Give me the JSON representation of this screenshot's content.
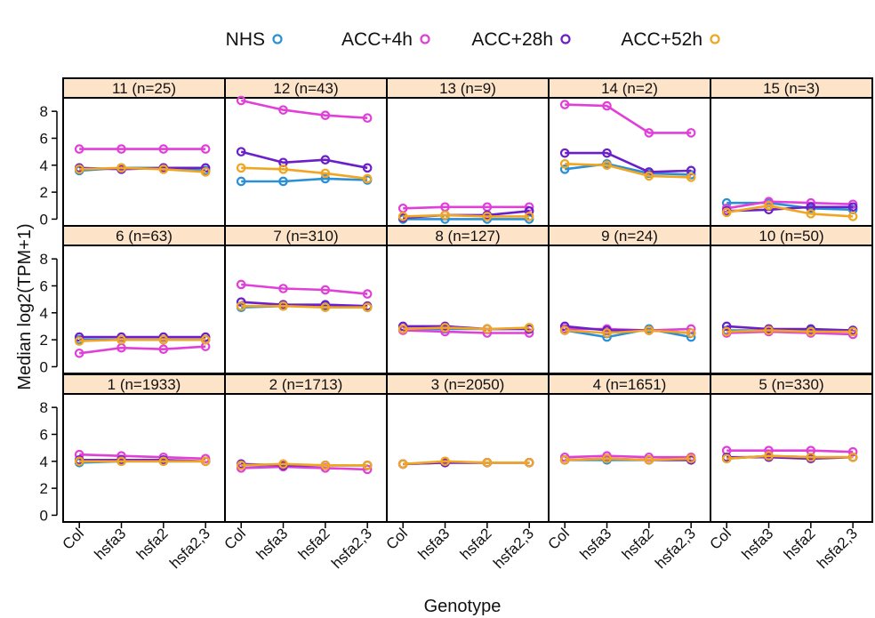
{
  "chart_data": {
    "type": "line",
    "title": "",
    "xlabel": "Genotype",
    "ylabel": "Median log2(TPM+1)",
    "ylim": [
      -0.5,
      9
    ],
    "yticks": [
      0,
      2,
      4,
      6,
      8
    ],
    "categories": [
      "Col",
      "hsfa3",
      "hsfa2",
      "hsfa2,3"
    ],
    "legend_position": "top",
    "series_meta": [
      {
        "name": "NHS",
        "color": "#2b8fd6"
      },
      {
        "name": "ACC+4h",
        "color": "#e040d8"
      },
      {
        "name": "ACC+28h",
        "color": "#6a1fc9"
      },
      {
        "name": "ACC+52h",
        "color": "#f0a622"
      }
    ],
    "panels": [
      {
        "label": "11 (n=25)",
        "series": [
          {
            "name": "NHS",
            "values": [
              3.6,
              3.8,
              3.8,
              3.6
            ]
          },
          {
            "name": "ACC+4h",
            "values": [
              5.2,
              5.2,
              5.2,
              5.2
            ]
          },
          {
            "name": "ACC+28h",
            "values": [
              3.8,
              3.7,
              3.8,
              3.8
            ]
          },
          {
            "name": "ACC+52h",
            "values": [
              3.7,
              3.8,
              3.7,
              3.5
            ]
          }
        ]
      },
      {
        "label": "12 (n=43)",
        "series": [
          {
            "name": "NHS",
            "values": [
              2.8,
              2.8,
              3.0,
              2.9
            ]
          },
          {
            "name": "ACC+4h",
            "values": [
              8.8,
              8.1,
              7.7,
              7.5
            ]
          },
          {
            "name": "ACC+28h",
            "values": [
              5.0,
              4.2,
              4.4,
              3.8
            ]
          },
          {
            "name": "ACC+52h",
            "values": [
              3.8,
              3.7,
              3.4,
              3.0
            ]
          }
        ]
      },
      {
        "label": "13 (n=9)",
        "series": [
          {
            "name": "NHS",
            "values": [
              0.0,
              0.0,
              0.0,
              0.0
            ]
          },
          {
            "name": "ACC+4h",
            "values": [
              0.8,
              0.9,
              0.9,
              0.9
            ]
          },
          {
            "name": "ACC+28h",
            "values": [
              0.1,
              0.3,
              0.3,
              0.6
            ]
          },
          {
            "name": "ACC+52h",
            "values": [
              0.2,
              0.3,
              0.2,
              0.2
            ]
          }
        ]
      },
      {
        "label": "14 (n=2)",
        "series": [
          {
            "name": "NHS",
            "values": [
              3.7,
              4.1,
              3.4,
              3.3
            ]
          },
          {
            "name": "ACC+4h",
            "values": [
              8.5,
              8.4,
              6.4,
              6.4
            ]
          },
          {
            "name": "ACC+28h",
            "values": [
              4.9,
              4.9,
              3.5,
              3.6
            ]
          },
          {
            "name": "ACC+52h",
            "values": [
              4.1,
              4.0,
              3.2,
              3.1
            ]
          }
        ]
      },
      {
        "label": "15 (n=3)",
        "series": [
          {
            "name": "NHS",
            "values": [
              1.2,
              1.2,
              0.8,
              0.7
            ]
          },
          {
            "name": "ACC+4h",
            "values": [
              0.8,
              1.3,
              1.2,
              1.1
            ]
          },
          {
            "name": "ACC+28h",
            "values": [
              0.6,
              0.7,
              0.9,
              0.9
            ]
          },
          {
            "name": "ACC+52h",
            "values": [
              0.5,
              1.0,
              0.4,
              0.2
            ]
          }
        ]
      },
      {
        "label": "6 (n=63)",
        "series": [
          {
            "name": "NHS",
            "values": [
              2.0,
              2.0,
              2.0,
              2.0
            ]
          },
          {
            "name": "ACC+4h",
            "values": [
              1.0,
              1.4,
              1.3,
              1.5
            ]
          },
          {
            "name": "ACC+28h",
            "values": [
              2.2,
              2.2,
              2.2,
              2.2
            ]
          },
          {
            "name": "ACC+52h",
            "values": [
              1.9,
              2.0,
              2.0,
              2.0
            ]
          }
        ]
      },
      {
        "label": "7 (n=310)",
        "series": [
          {
            "name": "NHS",
            "values": [
              4.4,
              4.5,
              4.5,
              4.4
            ]
          },
          {
            "name": "ACC+4h",
            "values": [
              6.1,
              5.8,
              5.7,
              5.4
            ]
          },
          {
            "name": "ACC+28h",
            "values": [
              4.8,
              4.6,
              4.6,
              4.5
            ]
          },
          {
            "name": "ACC+52h",
            "values": [
              4.5,
              4.5,
              4.4,
              4.4
            ]
          }
        ]
      },
      {
        "label": "8 (n=127)",
        "series": [
          {
            "name": "NHS",
            "values": [
              2.8,
              2.8,
              2.8,
              2.8
            ]
          },
          {
            "name": "ACC+4h",
            "values": [
              2.7,
              2.6,
              2.5,
              2.5
            ]
          },
          {
            "name": "ACC+28h",
            "values": [
              3.0,
              3.0,
              2.8,
              2.8
            ]
          },
          {
            "name": "ACC+52h",
            "values": [
              2.8,
              2.9,
              2.8,
              2.9
            ]
          }
        ]
      },
      {
        "label": "9 (n=24)",
        "series": [
          {
            "name": "NHS",
            "values": [
              2.7,
              2.2,
              2.8,
              2.2
            ]
          },
          {
            "name": "ACC+4h",
            "values": [
              2.8,
              2.8,
              2.7,
              2.8
            ]
          },
          {
            "name": "ACC+28h",
            "values": [
              3.0,
              2.7,
              2.7,
              2.5
            ]
          },
          {
            "name": "ACC+52h",
            "values": [
              2.7,
              2.5,
              2.7,
              2.5
            ]
          }
        ]
      },
      {
        "label": "10 (n=50)",
        "series": [
          {
            "name": "NHS",
            "values": [
              2.7,
              2.7,
              2.7,
              2.7
            ]
          },
          {
            "name": "ACC+4h",
            "values": [
              2.5,
              2.6,
              2.5,
              2.4
            ]
          },
          {
            "name": "ACC+28h",
            "values": [
              3.0,
              2.8,
              2.8,
              2.7
            ]
          },
          {
            "name": "ACC+52h",
            "values": [
              2.6,
              2.7,
              2.6,
              2.6
            ]
          }
        ]
      },
      {
        "label": "1 (n=1933)",
        "series": [
          {
            "name": "NHS",
            "values": [
              3.9,
              4.0,
              4.0,
              4.0
            ]
          },
          {
            "name": "ACC+4h",
            "values": [
              4.5,
              4.4,
              4.3,
              4.2
            ]
          },
          {
            "name": "ACC+28h",
            "values": [
              4.1,
              4.1,
              4.1,
              4.0
            ]
          },
          {
            "name": "ACC+52h",
            "values": [
              4.0,
              4.0,
              4.0,
              4.0
            ]
          }
        ]
      },
      {
        "label": "2 (n=1713)",
        "series": [
          {
            "name": "NHS",
            "values": [
              3.7,
              3.7,
              3.7,
              3.7
            ]
          },
          {
            "name": "ACC+4h",
            "values": [
              3.5,
              3.6,
              3.5,
              3.4
            ]
          },
          {
            "name": "ACC+28h",
            "values": [
              3.8,
              3.7,
              3.7,
              3.7
            ]
          },
          {
            "name": "ACC+52h",
            "values": [
              3.7,
              3.8,
              3.7,
              3.7
            ]
          }
        ]
      },
      {
        "label": "3 (n=2050)",
        "series": [
          {
            "name": "NHS",
            "values": [
              3.8,
              3.9,
              3.9,
              3.9
            ]
          },
          {
            "name": "ACC+4h",
            "values": [
              3.8,
              3.9,
              3.9,
              3.9
            ]
          },
          {
            "name": "ACC+28h",
            "values": [
              3.8,
              3.9,
              3.9,
              3.9
            ]
          },
          {
            "name": "ACC+52h",
            "values": [
              3.8,
              4.0,
              3.9,
              3.9
            ]
          }
        ]
      },
      {
        "label": "4 (n=1651)",
        "series": [
          {
            "name": "NHS",
            "values": [
              4.1,
              4.1,
              4.1,
              4.1
            ]
          },
          {
            "name": "ACC+4h",
            "values": [
              4.3,
              4.4,
              4.3,
              4.3
            ]
          },
          {
            "name": "ACC+28h",
            "values": [
              4.1,
              4.2,
              4.1,
              4.1
            ]
          },
          {
            "name": "ACC+52h",
            "values": [
              4.1,
              4.2,
              4.1,
              4.2
            ]
          }
        ]
      },
      {
        "label": "5 (n=330)",
        "series": [
          {
            "name": "NHS",
            "values": [
              4.2,
              4.4,
              4.3,
              4.3
            ]
          },
          {
            "name": "ACC+4h",
            "values": [
              4.8,
              4.8,
              4.8,
              4.7
            ]
          },
          {
            "name": "ACC+28h",
            "values": [
              4.3,
              4.3,
              4.2,
              4.3
            ]
          },
          {
            "name": "ACC+52h",
            "values": [
              4.2,
              4.4,
              4.3,
              4.3
            ]
          }
        ]
      }
    ]
  }
}
